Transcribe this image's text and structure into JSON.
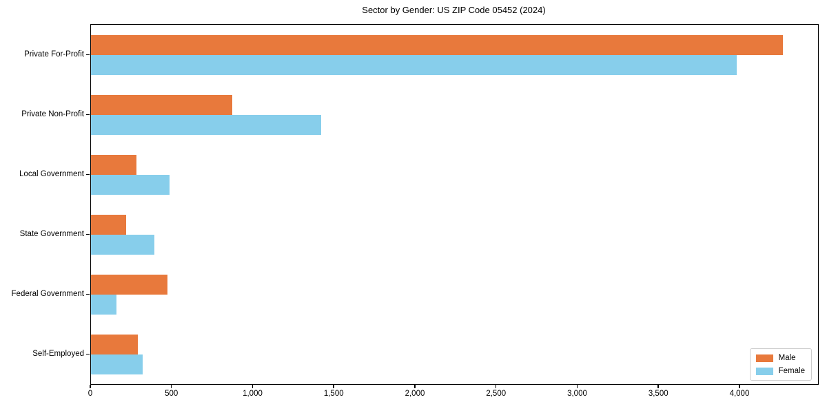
{
  "chart_data": {
    "type": "bar",
    "orientation": "horizontal",
    "title": "Sector by Gender: US ZIP Code 05452 (2024)",
    "categories": [
      "Private For-Profit",
      "Private Non-Profit",
      "Local Government",
      "State Government",
      "Federal Government",
      "Self-Employed"
    ],
    "series": [
      {
        "name": "Male",
        "color": "#e8793c",
        "values": [
          4265,
          870,
          280,
          215,
          470,
          290
        ]
      },
      {
        "name": "Female",
        "color": "#87ceeb",
        "values": [
          3980,
          1420,
          485,
          390,
          155,
          320
        ]
      }
    ],
    "xlabel": "",
    "ylabel": "",
    "xlim": [
      0,
      4480
    ],
    "x_ticks": [
      {
        "v": 0,
        "label": "0"
      },
      {
        "v": 500,
        "label": "500"
      },
      {
        "v": 1000,
        "label": "1,000"
      },
      {
        "v": 1500,
        "label": "1,500"
      },
      {
        "v": 2000,
        "label": "2,000"
      },
      {
        "v": 2500,
        "label": "2,500"
      },
      {
        "v": 3000,
        "label": "3,000"
      },
      {
        "v": 3500,
        "label": "3,500"
      },
      {
        "v": 4000,
        "label": "4,000"
      }
    ],
    "grid": false,
    "legend_position": "lower right",
    "legend_entries": [
      {
        "label": "Male",
        "color": "#e8793c"
      },
      {
        "label": "Female",
        "color": "#87ceeb"
      }
    ]
  },
  "colors": {
    "male": "#e8793c",
    "female": "#87ceeb",
    "spine": "#000000",
    "background": "#ffffff",
    "legend_border": "#cccccc"
  }
}
